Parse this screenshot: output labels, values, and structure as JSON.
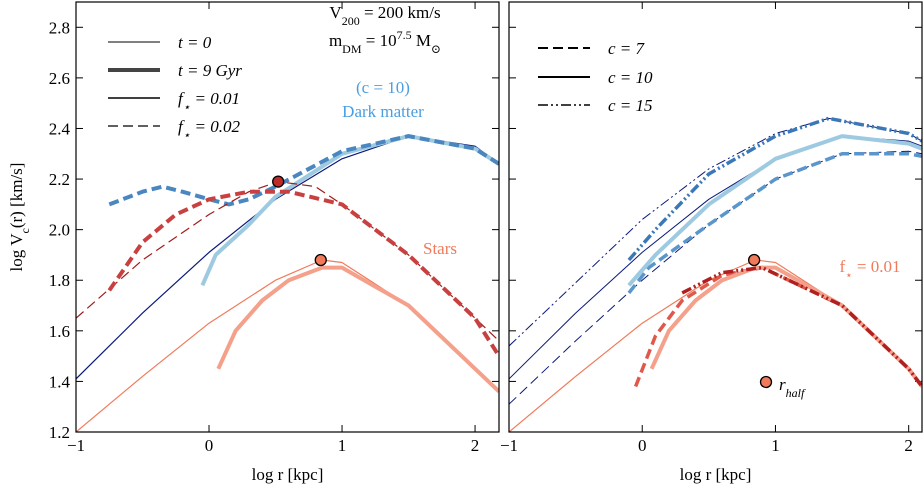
{
  "chart_data": [
    {
      "type": "line",
      "xlabel": "log r [kpc]",
      "ylabel": [
        {
          "text": "log V"
        },
        {
          "text": "c",
          "shift": "sub"
        },
        {
          "text": "(r) [km/s]"
        }
      ],
      "xlim": [
        -1,
        2.18
      ],
      "ylim": [
        1.2,
        2.9
      ],
      "xticks": [
        {
          "value": -1,
          "label": "−1"
        },
        0,
        1,
        2
      ],
      "yticks": [
        1.2,
        1.4,
        1.6,
        1.8,
        {
          "value": 2,
          "label": "2.0"
        },
        2.2,
        2.4,
        2.6,
        2.8
      ],
      "ytick_labels": true,
      "legend": [
        {
          "label": [
            {
              "text": "t = 0"
            }
          ],
          "color": "#000000",
          "width": 1,
          "dash": "solid"
        },
        {
          "label": [
            {
              "text": "t = 9 Gyr"
            }
          ],
          "color": "#444444",
          "width": 4,
          "dash": "solid"
        },
        {
          "label": [
            {
              "text": "f"
            },
            {
              "text": "⋆",
              "shift": "sub"
            },
            {
              "text": " = 0.01"
            }
          ],
          "color": "#000000",
          "width": 1.5,
          "dash": "solid"
        },
        {
          "label": [
            {
              "text": "f"
            },
            {
              "text": "⋆",
              "shift": "sub"
            },
            {
              "text": " = 0.02"
            }
          ],
          "color": "#000000",
          "width": 1.2,
          "dash": "dashed"
        }
      ],
      "series": [
        {
          "color": "#0b1a7a",
          "width": 1.2,
          "dash": "solid",
          "x": [
            -1,
            -0.5,
            0,
            0.5,
            1,
            1.5,
            2,
            2.18
          ],
          "values": [
            1.41,
            1.67,
            1.91,
            2.12,
            2.28,
            2.37,
            2.33,
            2.26
          ]
        },
        {
          "color": "#9ecae1",
          "width": 4,
          "dash": "solid",
          "x": [
            -0.05,
            0.05,
            0.3,
            0.5,
            1,
            1.5,
            2,
            2.18
          ],
          "values": [
            1.78,
            1.9,
            2.02,
            2.13,
            2.3,
            2.37,
            2.32,
            2.26
          ]
        },
        {
          "color": "#4a86c0",
          "width": 4,
          "dash": "dashed",
          "x": [
            -0.75,
            -0.5,
            -0.35,
            -0.2,
            0,
            0.15,
            0.3,
            0.5,
            1,
            1.5,
            2,
            2.18
          ],
          "values": [
            2.1,
            2.15,
            2.17,
            2.15,
            2.12,
            2.1,
            2.12,
            2.17,
            2.31,
            2.37,
            2.32,
            2.26
          ]
        },
        {
          "color": "#f07a5a",
          "width": 1.2,
          "dash": "solid",
          "x": [
            -1,
            -0.5,
            0,
            0.5,
            0.85,
            1,
            1.5,
            2,
            2.18
          ],
          "values": [
            1.2,
            1.42,
            1.63,
            1.8,
            1.88,
            1.87,
            1.7,
            1.45,
            1.36
          ]
        },
        {
          "color": "#f4a08a",
          "width": 4,
          "dash": "solid",
          "x": [
            0.07,
            0.2,
            0.4,
            0.6,
            0.85,
            1,
            1.5,
            2,
            2.18
          ],
          "values": [
            1.45,
            1.6,
            1.72,
            1.8,
            1.85,
            1.85,
            1.7,
            1.45,
            1.36
          ]
        },
        {
          "color": "#a01c1c",
          "width": 1.2,
          "dash": "dashed",
          "x": [
            -1,
            -0.5,
            0,
            0.3,
            0.52,
            0.8,
            1,
            1.5,
            2,
            2.18
          ],
          "values": [
            1.65,
            1.88,
            2.06,
            2.15,
            2.19,
            2.17,
            2.1,
            1.9,
            1.65,
            1.56
          ]
        },
        {
          "color": "#c84040",
          "width": 4,
          "dash": "dashed",
          "x": [
            -0.75,
            -0.5,
            -0.25,
            0,
            0.3,
            0.6,
            1,
            1.5,
            2,
            2.18
          ],
          "values": [
            1.76,
            1.95,
            2.06,
            2.12,
            2.15,
            2.15,
            2.1,
            1.9,
            1.65,
            1.5
          ]
        }
      ],
      "points": [
        {
          "x": 0.52,
          "y": 2.19,
          "color": "#c0282a"
        },
        {
          "x": 0.84,
          "y": 1.88,
          "color": "#f07a5a"
        }
      ],
      "annotations": [
        {
          "color": "#000000",
          "parts": [
            {
              "text": "V"
            },
            {
              "text": "200",
              "shift": "sub"
            },
            {
              "text": " = 200 km/s"
            }
          ]
        },
        {
          "color": "#000000",
          "parts": [
            {
              "text": "m"
            },
            {
              "text": "DM",
              "shift": "sub"
            },
            {
              "text": " = 10"
            },
            {
              "text": "7.5",
              "shift": "super"
            },
            {
              "text": " M"
            },
            {
              "text": "⊙",
              "shift": "sub"
            }
          ]
        },
        {
          "color": "#4a9ee0",
          "parts": [
            {
              "text": "(c = 10)"
            }
          ]
        },
        {
          "color": "#4a9ee0",
          "parts": [
            {
              "text": "Dark matter"
            }
          ]
        },
        {
          "color": "#f07a5a",
          "parts": [
            {
              "text": "Stars"
            }
          ]
        }
      ]
    },
    {
      "type": "line",
      "xlabel": "log r [kpc]",
      "xlim": [
        -1,
        2.1
      ],
      "ylim": [
        1.2,
        2.9
      ],
      "xticks": [
        {
          "value": -1,
          "label": "−1"
        },
        0,
        1,
        2
      ],
      "yticks": [
        1.2,
        1.4,
        1.6,
        1.8,
        2,
        2.2,
        2.4,
        2.6,
        2.8
      ],
      "ytick_labels": false,
      "legend": [
        {
          "label": [
            {
              "text": "c = 7"
            }
          ],
          "color": "#000000",
          "width": 2,
          "dash": "dashed"
        },
        {
          "label": [
            {
              "text": "c = 10"
            }
          ],
          "color": "#000000",
          "width": 2,
          "dash": "solid"
        },
        {
          "label": [
            {
              "text": "c = 15"
            }
          ],
          "color": "#000000",
          "width": 1.5,
          "dash": "dashdotdot"
        }
      ],
      "series": [
        {
          "color": "#0b1a7a",
          "width": 1,
          "dash": "dashed",
          "x": [
            -1,
            -0.5,
            0,
            0.5,
            1,
            1.5,
            2,
            2.1
          ],
          "values": [
            1.31,
            1.56,
            1.8,
            2.02,
            2.2,
            2.3,
            2.31,
            2.3
          ]
        },
        {
          "color": "#0b1a7a",
          "width": 1,
          "dash": "solid",
          "x": [
            -1,
            -0.5,
            0,
            0.5,
            1,
            1.5,
            2,
            2.1
          ],
          "values": [
            1.41,
            1.67,
            1.91,
            2.12,
            2.28,
            2.37,
            2.35,
            2.33
          ]
        },
        {
          "color": "#0b1a7a",
          "width": 1,
          "dash": "dashdotdot",
          "x": [
            -1,
            -0.5,
            0,
            0.5,
            1,
            1.4,
            2,
            2.1
          ],
          "values": [
            1.54,
            1.79,
            2.04,
            2.24,
            2.38,
            2.44,
            2.38,
            2.35
          ]
        },
        {
          "color": "#5a96cc",
          "width": 3.5,
          "dash": "dashed",
          "x": [
            -0.1,
            0.05,
            0.5,
            1,
            1.5,
            2,
            2.1
          ],
          "values": [
            1.75,
            1.85,
            2.02,
            2.2,
            2.3,
            2.3,
            2.29
          ]
        },
        {
          "color": "#9ecae1",
          "width": 4,
          "dash": "solid",
          "x": [
            -0.1,
            0.1,
            0.5,
            1,
            1.5,
            2,
            2.1
          ],
          "values": [
            1.78,
            1.9,
            2.1,
            2.28,
            2.37,
            2.34,
            2.32
          ]
        },
        {
          "color": "#3a78b8",
          "width": 3.5,
          "dash": "dashdotdot",
          "x": [
            -0.1,
            0.1,
            0.5,
            1,
            1.4,
            2,
            2.1
          ],
          "values": [
            1.88,
            2.0,
            2.22,
            2.37,
            2.44,
            2.38,
            2.35
          ]
        },
        {
          "color": "#f07a5a",
          "width": 1.2,
          "dash": "solid",
          "x": [
            -1,
            -0.5,
            0,
            0.5,
            0.85,
            1,
            1.5,
            2,
            2.1
          ],
          "values": [
            1.2,
            1.42,
            1.63,
            1.8,
            1.88,
            1.87,
            1.7,
            1.45,
            1.38
          ]
        },
        {
          "color": "#e0584a",
          "width": 3.5,
          "dash": "dashed",
          "x": [
            -0.05,
            0.1,
            0.3,
            0.6,
            0.9,
            1.5,
            2,
            2.1
          ],
          "values": [
            1.38,
            1.58,
            1.72,
            1.82,
            1.85,
            1.7,
            1.45,
            1.38
          ]
        },
        {
          "color": "#f4a08a",
          "width": 4,
          "dash": "solid",
          "x": [
            0.07,
            0.2,
            0.4,
            0.6,
            0.85,
            1,
            1.5,
            2,
            2.1
          ],
          "values": [
            1.45,
            1.6,
            1.72,
            1.8,
            1.85,
            1.85,
            1.7,
            1.45,
            1.38
          ]
        },
        {
          "color": "#b02020",
          "width": 3.5,
          "dash": "dashdotdot",
          "x": [
            0.3,
            0.6,
            0.9,
            1.5,
            2,
            2.1
          ],
          "values": [
            1.75,
            1.83,
            1.85,
            1.7,
            1.45,
            1.38
          ]
        }
      ],
      "points": [
        {
          "x": 0.84,
          "y": 1.88,
          "color": "#f07a5a"
        }
      ],
      "legend_marker": {
        "color": "#f07a5a",
        "label": [
          {
            "text": "r"
          },
          {
            "text": "half",
            "shift": "sub"
          }
        ]
      },
      "annotations": [
        {
          "color": "#f07a5a",
          "parts": [
            {
              "text": "f"
            },
            {
              "text": "⋆",
              "shift": "sub"
            },
            {
              "text": " = 0.01"
            }
          ]
        }
      ]
    }
  ]
}
